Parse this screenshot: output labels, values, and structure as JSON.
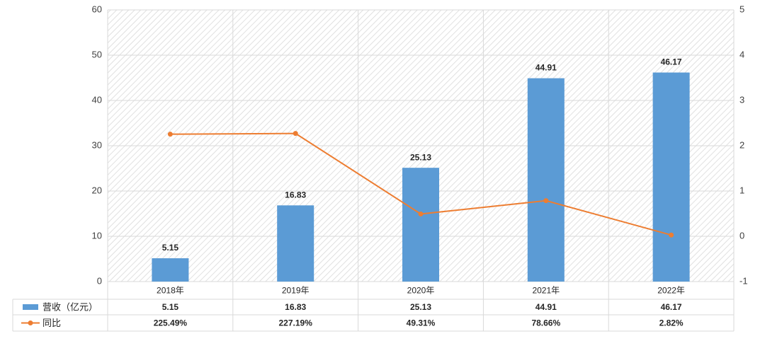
{
  "chart_data": {
    "type": "bar",
    "categories": [
      "2018年",
      "2019年",
      "2020年",
      "2021年",
      "2022年"
    ],
    "series": [
      {
        "name": "营收（亿元）",
        "type": "bar",
        "axis": "left",
        "color": "#5B9BD5",
        "values": [
          5.15,
          16.83,
          25.13,
          44.91,
          46.17
        ],
        "labels": [
          "5.15",
          "16.83",
          "25.13",
          "44.91",
          "46.17"
        ]
      },
      {
        "name": "同比",
        "type": "line",
        "axis": "right",
        "color": "#ED7D31",
        "values": [
          2.2549,
          2.2719,
          0.4931,
          0.7866,
          0.0282
        ],
        "labels": [
          "225.49%",
          "227.19%",
          "49.31%",
          "78.66%",
          "2.82%"
        ]
      }
    ],
    "ylim_left": [
      0,
      60
    ],
    "yticks_left": [
      "0",
      "10",
      "20",
      "30",
      "40",
      "50",
      "60"
    ],
    "ylim_right": [
      -1,
      5
    ],
    "yticks_right": [
      "-1",
      "0",
      "1",
      "2",
      "3",
      "4",
      "5"
    ],
    "grid": true,
    "data_table": true,
    "background": "hatched"
  }
}
